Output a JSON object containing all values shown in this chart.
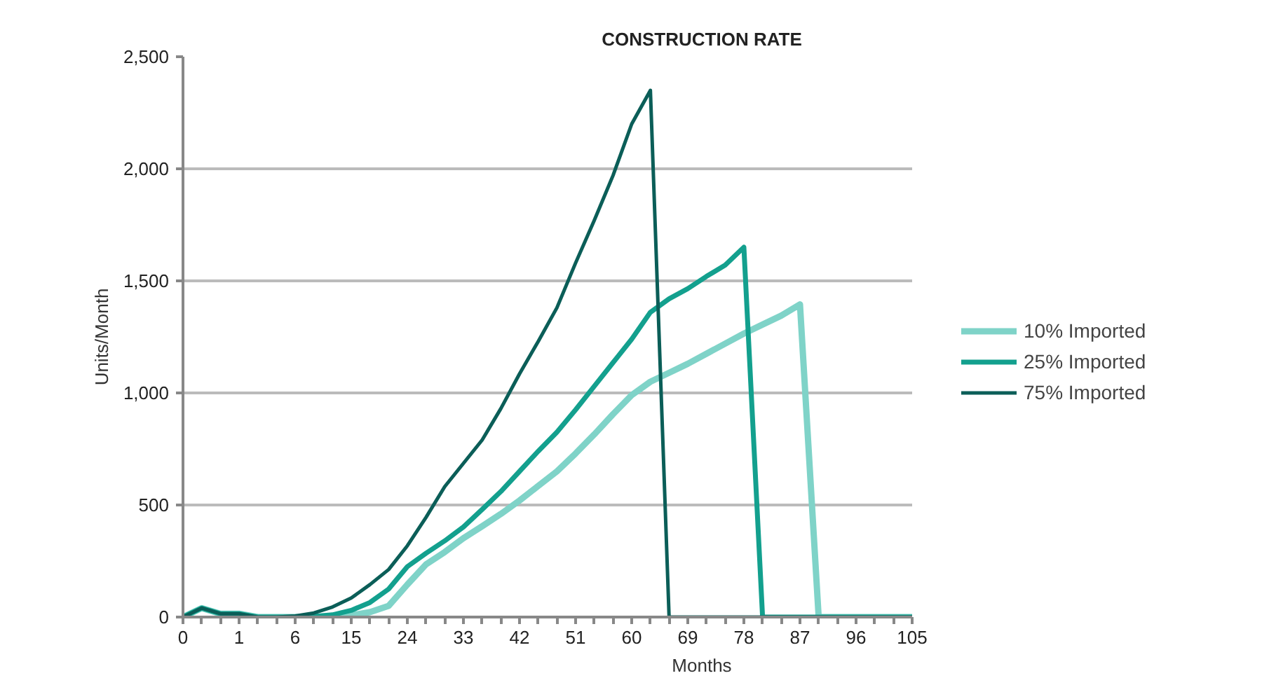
{
  "chart_data": {
    "type": "line",
    "title": "CONSTRUCTION RATE",
    "xlabel": "Months",
    "ylabel": "Units/Month",
    "categories": [
      "0",
      null,
      null,
      "1",
      null,
      null,
      "6",
      null,
      null,
      "15",
      null,
      null,
      "24",
      null,
      null,
      "33",
      null,
      null,
      "42",
      null,
      null,
      "51",
      null,
      null,
      "60",
      null,
      null,
      "69",
      null,
      null,
      "78",
      null,
      null,
      "87",
      null,
      null,
      "96",
      null,
      null,
      "105"
    ],
    "ylim": [
      0,
      2500
    ],
    "yticks": [
      0,
      {
        "value": 500,
        "label": "500"
      },
      {
        "value": 1000,
        "label": "1,000"
      },
      {
        "value": 1500,
        "label": "1,500"
      },
      {
        "value": 2000,
        "label": "2,000"
      },
      {
        "value": 2500,
        "label": "2,500"
      }
    ],
    "grid": "y",
    "legend": "right",
    "line_style": "solid",
    "marker": "none",
    "series": [
      {
        "name": "10% Imported",
        "color": "#7fd3c8",
        "values": [
          0,
          40,
          15,
          15,
          0,
          0,
          0,
          0,
          3,
          8,
          22,
          50,
          145,
          235,
          290,
          352,
          405,
          460,
          520,
          585,
          650,
          730,
          815,
          905,
          990,
          1050,
          1090,
          1130,
          1175,
          1220,
          1265,
          1305,
          1345,
          1395,
          0,
          0,
          0,
          0,
          0,
          0
        ]
      },
      {
        "name": "25% Imported",
        "color": "#13a08e",
        "values": [
          0,
          40,
          15,
          15,
          0,
          0,
          0,
          3,
          10,
          30,
          65,
          125,
          225,
          285,
          340,
          402,
          480,
          560,
          650,
          740,
          825,
          925,
          1030,
          1135,
          1240,
          1360,
          1420,
          1465,
          1520,
          1570,
          1650,
          0,
          0,
          0,
          0,
          0,
          0,
          0,
          0,
          0
        ]
      },
      {
        "name": "75% Imported",
        "color": "#0b5e58",
        "values": [
          0,
          40,
          15,
          15,
          0,
          0,
          5,
          18,
          45,
          85,
          145,
          212,
          318,
          445,
          582,
          686,
          790,
          930,
          1085,
          1230,
          1380,
          1580,
          1770,
          1970,
          2200,
          2350,
          0,
          0,
          0,
          0,
          0,
          0,
          0,
          0,
          0,
          0,
          0,
          0,
          0,
          0
        ]
      }
    ]
  }
}
